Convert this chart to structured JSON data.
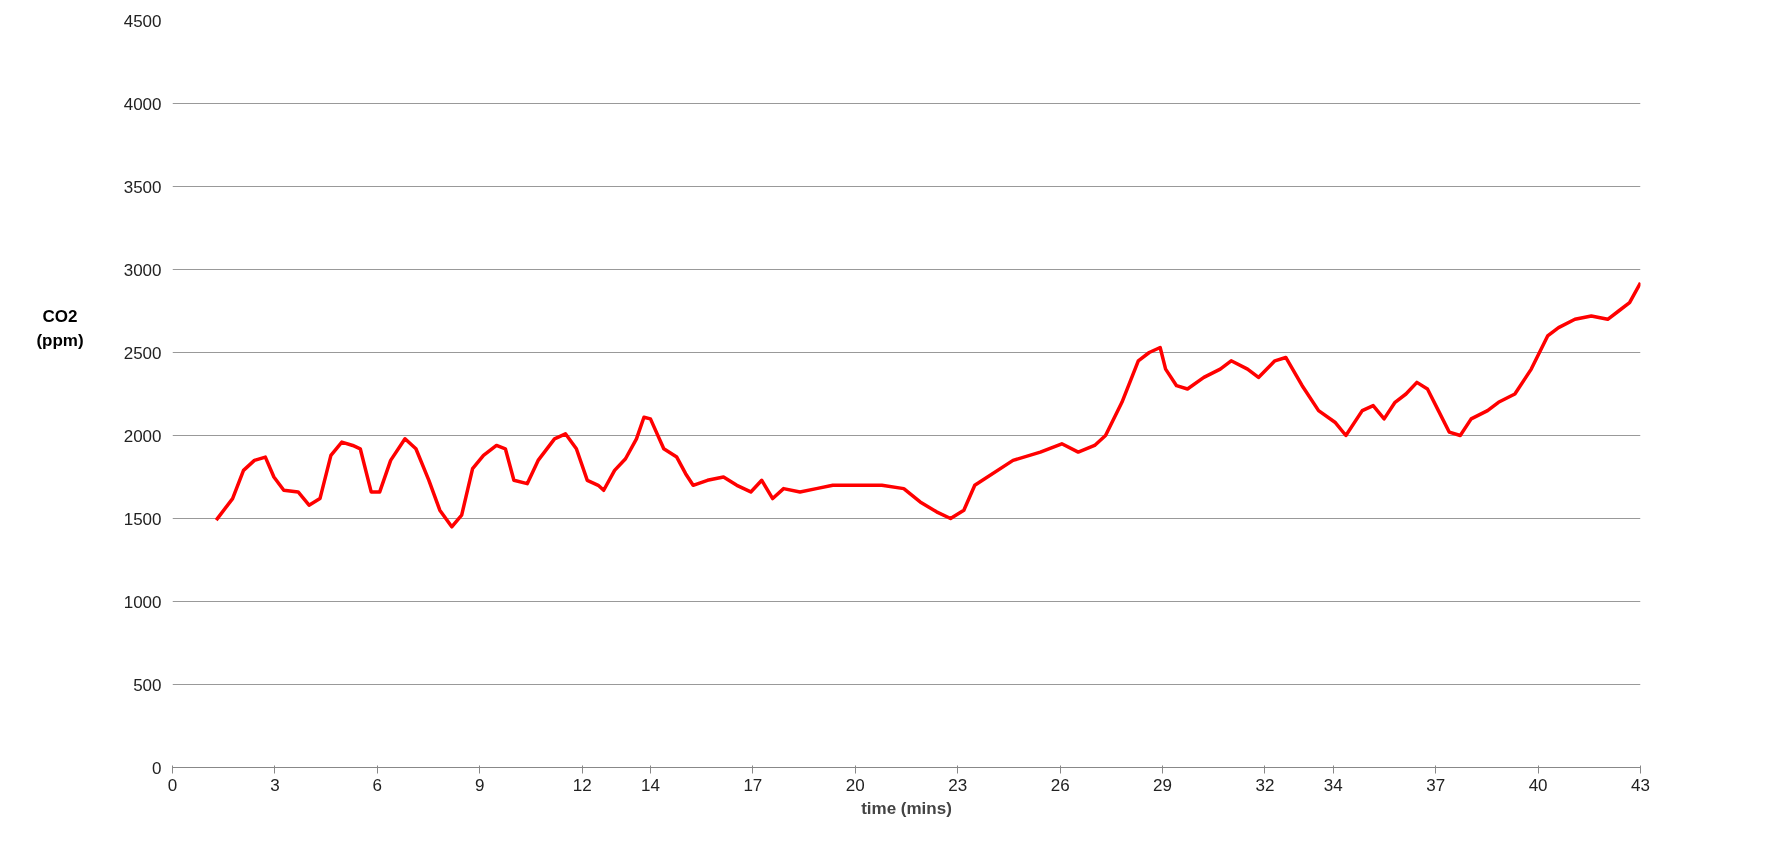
{
  "chart_data": {
    "type": "line",
    "xlabel": "time (mins)",
    "ylabel": "CO2\n(ppm)",
    "xlim": [
      0,
      43
    ],
    "ylim": [
      0,
      4500
    ],
    "xticks": [
      0,
      3,
      6,
      9,
      12,
      14,
      17,
      20,
      23,
      26,
      29,
      32,
      34,
      37,
      40,
      43
    ],
    "yticks": [
      0,
      500,
      1000,
      1500,
      2000,
      2500,
      3000,
      3500,
      4000,
      4500
    ],
    "grid": "y",
    "marker": "none",
    "line_style": "solid",
    "series": [
      {
        "color": "#ff0000",
        "x": [
          1.28,
          1.76,
          2.08,
          2.4,
          2.72,
          2.97,
          3.26,
          3.68,
          4.0,
          4.32,
          4.64,
          4.96,
          5.28,
          5.5,
          5.82,
          6.07,
          6.39,
          6.81,
          7.13,
          7.51,
          7.83,
          8.18,
          8.47,
          8.79,
          9.11,
          9.49,
          9.75,
          10.0,
          10.39,
          10.71,
          11.19,
          11.51,
          11.83,
          12.15,
          12.47,
          12.63,
          12.95,
          13.27,
          13.59,
          13.81,
          14.0,
          14.39,
          14.77,
          15.03,
          15.25,
          15.67,
          16.14,
          16.53,
          16.94,
          17.26,
          17.58,
          17.9,
          18.38,
          18.86,
          19.34,
          19.82,
          20.3,
          20.78,
          21.42,
          21.9,
          22.38,
          22.79,
          23.18,
          23.5,
          24.62,
          25.42,
          26.05,
          26.53,
          27.01,
          27.33,
          27.81,
          28.29,
          28.61,
          28.93,
          29.09,
          29.41,
          29.73,
          30.21,
          30.69,
          31.01,
          31.49,
          31.81,
          32.29,
          32.61,
          33.09,
          33.57,
          34.05,
          34.37,
          34.85,
          35.17,
          35.49,
          35.81,
          36.13,
          36.45,
          36.76,
          37.08,
          37.4,
          37.72,
          38.04,
          38.52,
          38.84,
          39.32,
          39.8,
          40.28,
          40.6,
          41.08,
          41.56,
          42.04,
          42.36,
          42.68,
          43.0
        ],
        "values": [
          1490,
          1620,
          1790,
          1850,
          1870,
          1750,
          1670,
          1660,
          1580,
          1620,
          1880,
          1960,
          1940,
          1920,
          1660,
          1660,
          1850,
          1980,
          1920,
          1730,
          1550,
          1450,
          1520,
          1800,
          1880,
          1940,
          1920,
          1730,
          1710,
          1850,
          1980,
          2010,
          1920,
          1730,
          1700,
          1670,
          1790,
          1860,
          1980,
          2110,
          2100,
          1920,
          1870,
          1770,
          1700,
          1730,
          1750,
          1700,
          1660,
          1730,
          1620,
          1680,
          1660,
          1680,
          1700,
          1700,
          1700,
          1700,
          1680,
          1600,
          1540,
          1500,
          1550,
          1700,
          1850,
          1900,
          1950,
          1900,
          1940,
          2000,
          2200,
          2450,
          2500,
          2530,
          2400,
          2300,
          2280,
          2350,
          2400,
          2450,
          2400,
          2350,
          2450,
          2470,
          2300,
          2150,
          2080,
          2000,
          2150,
          2180,
          2100,
          2200,
          2250,
          2320,
          2280,
          2150,
          2020,
          2000,
          2100,
          2150,
          2200,
          2250,
          2400,
          2600,
          2650,
          2700,
          2720,
          2700,
          2750,
          2800,
          2920
        ]
      }
    ]
  }
}
